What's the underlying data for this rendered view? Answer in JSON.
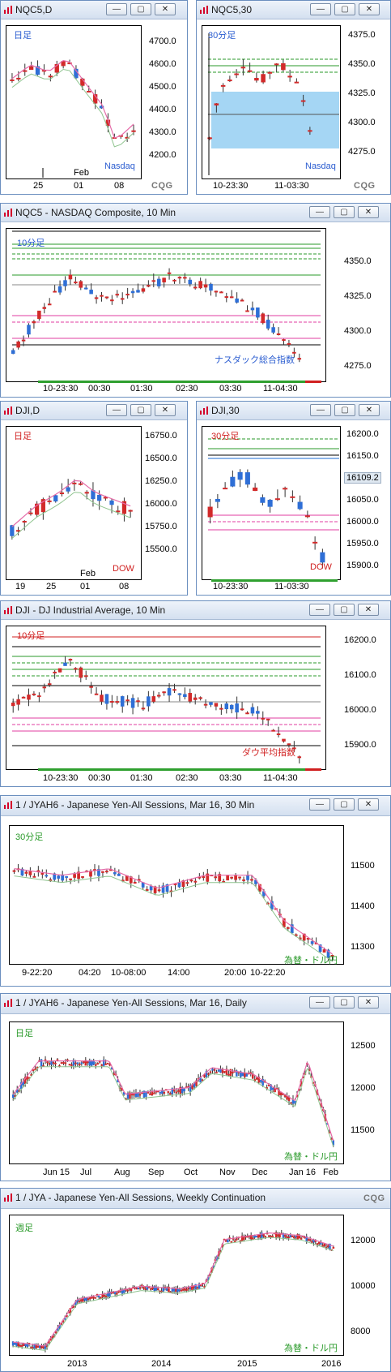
{
  "colors": {
    "up": "#2f6fd6",
    "down": "#d22a2a",
    "accent_pink": "#e23ca0",
    "accent_green": "#2a9a2a",
    "cqg_red": "#d4002a"
  },
  "icons": {
    "window": "chart-window-icon",
    "minimize": "minimize-icon",
    "maximize": "maximize-icon",
    "close": "close-icon"
  },
  "buttons": {
    "minimize": "—",
    "maximize": "▢",
    "close": "✕"
  },
  "cqg": "CQG",
  "windows": {
    "nqd": {
      "title": "NQC5,D",
      "tag": "日足",
      "name": "Nasdaq",
      "y_ticks": [
        "4700.0",
        "4600.0",
        "4500.0",
        "4400.0",
        "4300.0",
        "4200.0"
      ],
      "x_ticks": [
        "25",
        "01",
        "08"
      ],
      "x_month": "Feb"
    },
    "nq30": {
      "title": "NQC5,30",
      "tag": "30分足",
      "name": "Nasdaq",
      "y_ticks": [
        "4375.0",
        "4350.0",
        "4325.0",
        "4300.0",
        "4275.0"
      ],
      "x_ticks": [
        "10-23:30",
        "11-03:30"
      ]
    },
    "nq10": {
      "title": "NQC5 - NASDAQ Composite, 10 Min",
      "tag": "10分足",
      "name": "ナスダック総合指数",
      "y_ticks": [
        "4350.0",
        "4325.0",
        "4300.0",
        "4275.0"
      ],
      "x_ticks": [
        "10-23:30",
        "00:30",
        "01:30",
        "02:30",
        "03:30",
        "11-04:30"
      ]
    },
    "djd": {
      "title": "DJI,D",
      "tag": "日足",
      "name": "DOW",
      "y_ticks": [
        "16750.0",
        "16500.0",
        "16250.0",
        "16000.0",
        "15750.0",
        "15500.0"
      ],
      "x_ticks": [
        "19",
        "25",
        "01",
        "08"
      ],
      "x_month": "Feb"
    },
    "dj30": {
      "title": "DJI,30",
      "tag": "30分足",
      "name": "DOW",
      "y_ticks": [
        "16200.0",
        "16150.0",
        "16109.2",
        "16050.0",
        "16000.0",
        "15950.0",
        "15900.0"
      ],
      "x_ticks": [
        "10-23:30",
        "11-03:30"
      ],
      "last": "16109.2"
    },
    "dj10": {
      "title": "DJI - DJ Industrial Average, 10 Min",
      "tag": "10分足",
      "name": "ダウ平均指数",
      "y_ticks": [
        "16200.0",
        "16100.0",
        "16000.0",
        "15900.0"
      ],
      "x_ticks": [
        "10-23:30",
        "00:30",
        "01:30",
        "02:30",
        "03:30",
        "11-04:30"
      ]
    },
    "jy30": {
      "title": "1 / JYAH6 - Japanese Yen-All Sessions, Mar 16, 30 Min",
      "tag": "30分足",
      "name": "為替・ドル円",
      "y_ticks": [
        "11500",
        "11400",
        "11300"
      ],
      "x_ticks": [
        "9-22:20",
        "04:20",
        "10-08:00",
        "14:00",
        "20:00",
        "10-22:20"
      ]
    },
    "jyd": {
      "title": "1 / JYAH6 - Japanese Yen-All Sessions, Mar 16, Daily",
      "tag": "日足",
      "name": "為替・ドル円",
      "y_ticks": [
        "12500",
        "12000",
        "11500"
      ],
      "x_ticks": [
        "Jun 15",
        "Jul",
        "Aug",
        "Sep",
        "Oct",
        "Nov",
        "Dec",
        "Jan 16",
        "Feb"
      ]
    },
    "jyw": {
      "title": "1 / JYA - Japanese Yen-All Sessions, Weekly Continuation",
      "tag": "週足",
      "name": "為替・ドル円",
      "y_ticks": [
        "12000",
        "10000",
        "8000"
      ],
      "x_ticks": [
        "2013",
        "2014",
        "2015",
        "2016"
      ]
    }
  }
}
